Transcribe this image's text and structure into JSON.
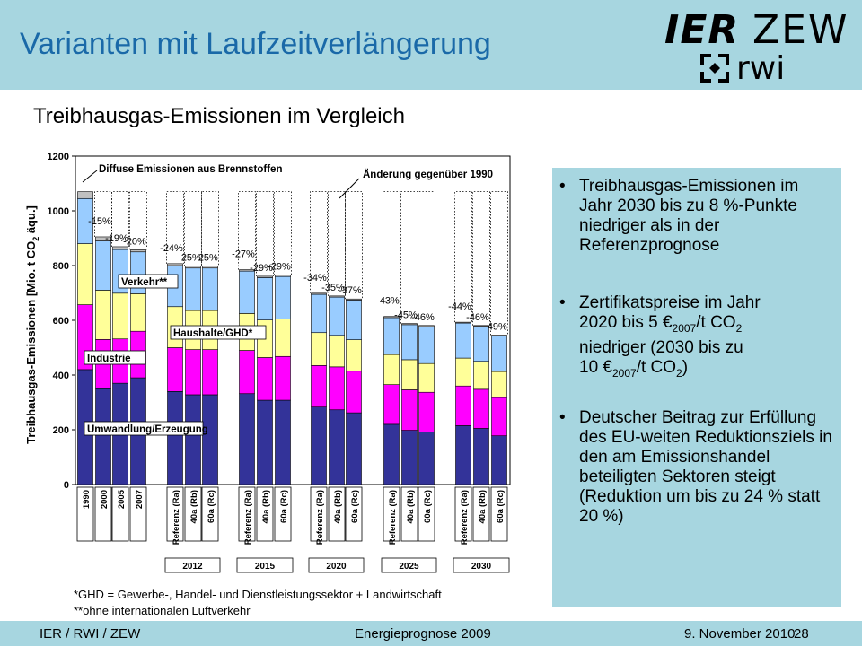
{
  "header": {
    "title": "Varianten mit Laufzeitverlängerung"
  },
  "logos": {
    "ier": "IER",
    "zew": "ZEW",
    "rwi": "rwi"
  },
  "subtitle": "Treibhausgas-Emissionen im Vergleich",
  "colors": {
    "umwandlung": "#333399",
    "industrie": "#ff00ff",
    "haushalte": "#ffff99",
    "verkehr": "#99ccff",
    "diffuse": "#c0c0c0",
    "header_bg": "#a7d6e0",
    "title": "#1a69a8"
  },
  "chart_data": {
    "type": "bar",
    "stacked": true,
    "ylabel": "Treibhausgas-Emissionen [Mio. t CO2 äqu.]",
    "ylabel_parts": {
      "a": "Treibhausgas-Emissionen [Mio. t CO",
      "sub": "2",
      "b": " äqu.]"
    },
    "ylim": [
      0,
      1200
    ],
    "yticks": [
      "0",
      "200",
      "400",
      "600",
      "800",
      "1000",
      "1200"
    ],
    "categories": [
      "1990",
      "2000",
      "2005",
      "2007",
      "Referenz (Ra)",
      "40a (Rb)",
      "60a (Rc)",
      "Referenz (Ra)",
      "40a (Rb)",
      "60a (Rc)",
      "Referenz (Ra)",
      "40a (Rb)",
      "60a (Rc)",
      "Referenz (Ra)",
      "40a (Rb)",
      "60a (Rc)",
      "Referenz (Ra)",
      "40a (Rb)",
      "60a (Rc)"
    ],
    "groups": [
      "2012",
      "2015",
      "2020",
      "2025",
      "2030"
    ],
    "series": [
      {
        "name": "Umwandlung/Erzeugung",
        "values": [
          420,
          350,
          370,
          390,
          340,
          328,
          328,
          332,
          308,
          308,
          283,
          273,
          262,
          220,
          198,
          192,
          215,
          205,
          178
        ]
      },
      {
        "name": "Industrie",
        "values": [
          237,
          180,
          162,
          170,
          160,
          165,
          165,
          158,
          156,
          160,
          152,
          157,
          152,
          145,
          148,
          145,
          145,
          143,
          140
        ]
      },
      {
        "name": "Haushalte/GHD*",
        "values": [
          223,
          180,
          167,
          137,
          150,
          143,
          143,
          135,
          137,
          137,
          120,
          115,
          115,
          110,
          110,
          105,
          102,
          102,
          95
        ]
      },
      {
        "name": "Verkehr**",
        "values": [
          165,
          180,
          160,
          153,
          150,
          155,
          155,
          155,
          155,
          155,
          140,
          140,
          145,
          135,
          128,
          135,
          128,
          128,
          130
        ]
      },
      {
        "name": "Diffuse Emissionen aus Brennstoffen",
        "values": [
          25,
          15,
          10,
          8,
          7,
          7,
          7,
          5,
          5,
          5,
          4,
          4,
          4,
          4,
          4,
          4,
          3,
          3,
          3
        ]
      }
    ],
    "changes": [
      "-15%",
      "-19%",
      "-20%",
      "-24%",
      "-25%",
      "-25%",
      "-27%",
      "-29%",
      "-29%",
      "-34%",
      "-35%",
      "-37%",
      "-43%",
      "-45%",
      "-46%",
      "-44%",
      "-46%",
      "-49%"
    ],
    "annotations": {
      "diffuse": "Diffuse Emissionen aus Brennstoffen",
      "change": "Änderung gegenüber 1990"
    }
  },
  "bullets": {
    "b1": "Treibhausgas-Emissionen im Jahr 2030 bis zu 8 %-Punkte niedriger als in der Referenzprognose",
    "b2": {
      "l1a": "Zertifikatspreise im Jahr",
      "l2a": "2020 bis 5 €",
      "l2sub": "2007",
      "l2b": "/t CO",
      "l2sub2": "2",
      "l3": "niedriger (2030 bis zu",
      "l4a": "10 €",
      "l4sub": "2007",
      "l4b": "/t CO",
      "l4sub2": "2",
      "l4c": ")"
    },
    "b3": "Deutscher Beitrag zur Erfüllung des EU-weiten Reduktionsziels in den am Emissionshandel beteiligten Sektoren steigt (Reduktion um bis zu 24 % statt 20 %)"
  },
  "footnotes": {
    "f1": "*GHD = Gewerbe-, Handel- und Dienstleistungssektor + Landwirtschaft",
    "f2": "**ohne internationalen Luftverkehr"
  },
  "footer": {
    "left": "IER / RWI / ZEW",
    "middle": "Energieprognose 2009",
    "date": "9. November 2010",
    "page": "28"
  }
}
